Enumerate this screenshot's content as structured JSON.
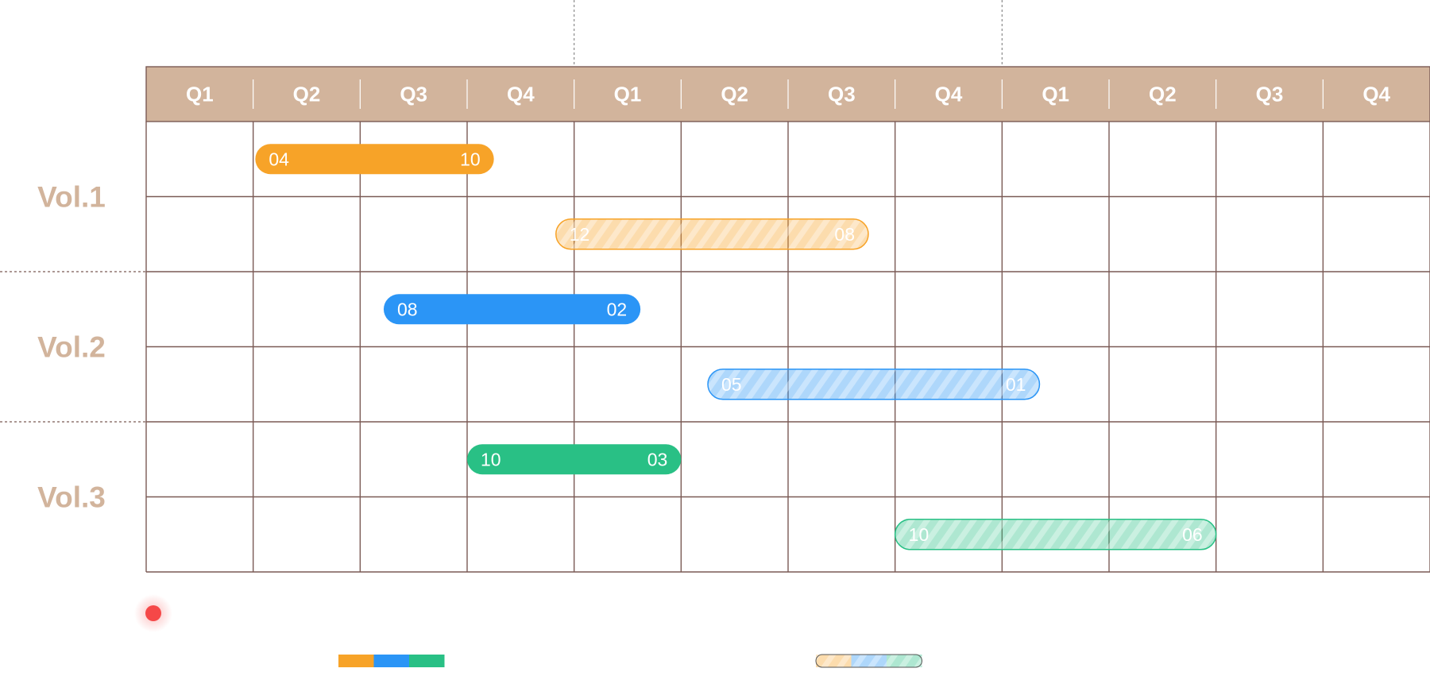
{
  "colors": {
    "header_bg": "#d2b49c",
    "grid": "#7a5a55",
    "label": "#d2b49c",
    "orange": "#f7a328",
    "blue": "#2b95f6",
    "green": "#29c085",
    "marker": "#f54848"
  },
  "chart_data": {
    "type": "gantt",
    "columns": [
      "Q1",
      "Q2",
      "Q3",
      "Q4",
      "Q1",
      "Q2",
      "Q3",
      "Q4",
      "Q1",
      "Q2",
      "Q3",
      "Q4"
    ],
    "groups": [
      {
        "label": "Vol.1",
        "color": "orange"
      },
      {
        "label": "Vol.2",
        "color": "blue"
      },
      {
        "label": "Vol.3",
        "color": "green"
      }
    ],
    "bars": [
      {
        "group": 0,
        "style": "solid",
        "start_col": 1.02,
        "end_col": 3.25,
        "start_label": "04",
        "end_label": "10"
      },
      {
        "group": 0,
        "style": "striped",
        "start_col": 3.83,
        "end_col": 6.75,
        "start_label": "12",
        "end_label": "08"
      },
      {
        "group": 1,
        "style": "solid",
        "start_col": 2.22,
        "end_col": 4.62,
        "start_label": "08",
        "end_label": "02"
      },
      {
        "group": 1,
        "style": "striped",
        "start_col": 5.25,
        "end_col": 8.35,
        "start_label": "05",
        "end_label": "01"
      },
      {
        "group": 2,
        "style": "solid",
        "start_col": 3.0,
        "end_col": 5.0,
        "start_label": "10",
        "end_label": "03"
      },
      {
        "group": 2,
        "style": "striped",
        "start_col": 7.0,
        "end_col": 10.0,
        "start_label": "10",
        "end_label": "06"
      }
    ],
    "year_dividers_after_col": [
      4,
      8
    ],
    "legend": [
      {
        "style": "solid",
        "colors": [
          "orange",
          "blue",
          "green"
        ]
      },
      {
        "style": "striped",
        "colors": [
          "orange",
          "blue",
          "green"
        ]
      }
    ]
  }
}
